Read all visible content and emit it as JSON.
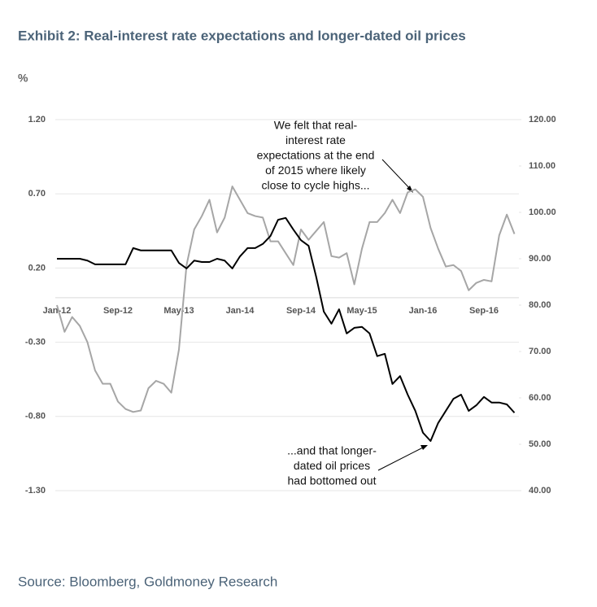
{
  "chart_data": {
    "type": "line",
    "title": "Exhibit 2: Real-interest rate expectations and longer-dated oil prices",
    "y_label": "%",
    "source": "Source: Bloomberg, Goldmoney Research",
    "annotations": [
      {
        "lines": [
          "We felt that real-",
          "interest rate",
          "expectations at the end",
          "of 2015 where likely",
          "close to cycle highs..."
        ]
      },
      {
        "lines": [
          "...and that longer-",
          "dated oil prices",
          "had bottomed out"
        ]
      }
    ],
    "categories": [
      "Jan-12",
      null,
      null,
      null,
      null,
      null,
      null,
      null,
      "Sep-12",
      null,
      null,
      null,
      null,
      null,
      null,
      null,
      "May-13",
      null,
      null,
      null,
      null,
      null,
      null,
      null,
      "Jan-14",
      null,
      null,
      null,
      null,
      null,
      null,
      null,
      "Sep-14",
      null,
      null,
      null,
      null,
      null,
      null,
      null,
      "May-15",
      null,
      null,
      null,
      null,
      null,
      null,
      null,
      "Jan-16",
      null,
      null,
      null,
      null,
      null,
      null,
      null,
      "Sep-16",
      null,
      null,
      null,
      null
    ],
    "series": [
      {
        "color": "#a6a6a6",
        "axis": "y",
        "values": [
          -0.05,
          -0.23,
          -0.13,
          -0.19,
          -0.3,
          -0.49,
          -0.58,
          -0.58,
          -0.7,
          -0.75,
          -0.77,
          -0.76,
          -0.61,
          -0.56,
          -0.58,
          -0.64,
          -0.35,
          0.22,
          0.46,
          0.55,
          0.66,
          0.44,
          0.54,
          0.75,
          0.66,
          0.57,
          0.55,
          0.54,
          0.38,
          0.38,
          0.3,
          0.22,
          0.46,
          0.39,
          0.45,
          0.51,
          0.28,
          0.27,
          0.3,
          0.09,
          0.33,
          0.51,
          0.51,
          0.57,
          0.66,
          0.57,
          0.71,
          0.73,
          0.68,
          0.47,
          0.33,
          0.21,
          0.22,
          0.18,
          0.05,
          0.1,
          0.12,
          0.11,
          0.42,
          0.56,
          0.43
        ]
      },
      {
        "color": "#000000",
        "axis": "y2",
        "values": [
          90.0,
          90.0,
          90.0,
          90.0,
          89.6,
          88.8,
          88.8,
          88.8,
          88.8,
          88.8,
          92.3,
          91.8,
          91.8,
          91.8,
          91.8,
          91.8,
          89.1,
          87.9,
          89.6,
          89.3,
          89.3,
          90.0,
          89.6,
          87.9,
          90.5,
          92.3,
          92.3,
          93.2,
          94.9,
          98.4,
          98.8,
          96.3,
          94.0,
          92.8,
          86.1,
          78.6,
          76.0,
          79.1,
          73.9,
          75.1,
          75.3,
          73.9,
          69.0,
          69.5,
          63.0,
          64.7,
          60.7,
          57.2,
          52.5,
          50.7,
          54.6,
          57.2,
          59.8,
          60.7,
          57.2,
          58.4,
          60.2,
          59.0,
          59.0,
          58.6,
          56.8
        ]
      }
    ],
    "ylim": [
      -1.3,
      1.2
    ],
    "yticks": [
      {
        "value": -1.3,
        "label": "-1.30"
      },
      {
        "value": -0.8,
        "label": "-0.80"
      },
      {
        "value": -0.3,
        "label": "-0.30"
      },
      {
        "value": 0.2,
        "label": "0.20"
      },
      {
        "value": 0.7,
        "label": "0.70"
      },
      {
        "value": 1.2,
        "label": "1.20"
      }
    ],
    "y2lim": [
      40,
      120
    ],
    "y2ticks": [
      {
        "value": 40,
        "label": "40.00"
      },
      {
        "value": 50,
        "label": "50.00"
      },
      {
        "value": 60,
        "label": "60.00"
      },
      {
        "value": 70,
        "label": "70.00"
      },
      {
        "value": 80,
        "label": "80.00"
      },
      {
        "value": 90,
        "label": "90.00"
      },
      {
        "value": 100,
        "label": "100.00"
      },
      {
        "value": 110,
        "label": "110.00"
      },
      {
        "value": 120,
        "label": "120.00"
      }
    ],
    "grid": true
  }
}
